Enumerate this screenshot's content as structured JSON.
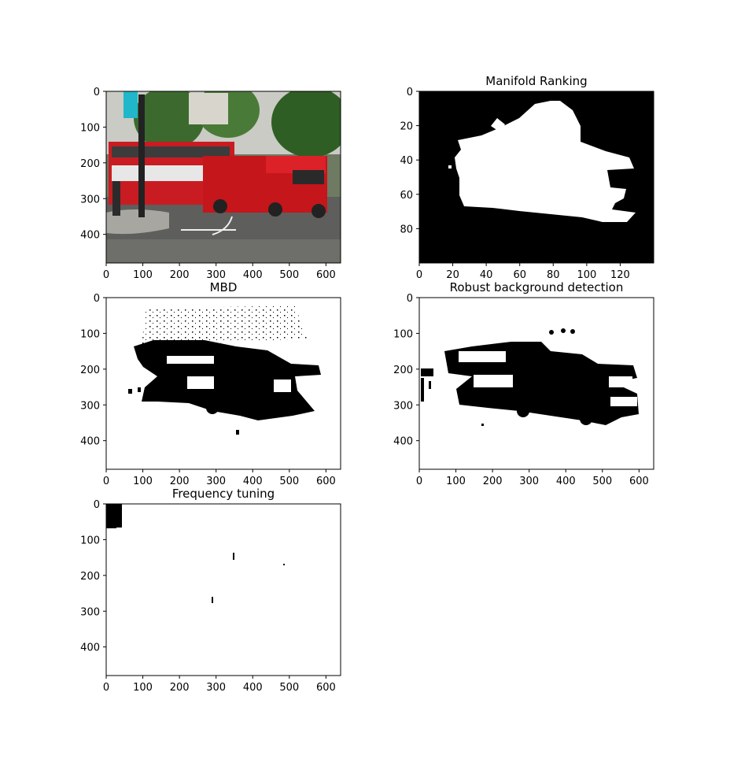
{
  "chart_data": [
    {
      "type": "image",
      "title": "",
      "image": "photo of red double-decker bus and red recovery truck on a street with trees",
      "xlim": [
        0,
        640
      ],
      "ylim": [
        480,
        0
      ],
      "xticks": [
        0,
        100,
        200,
        300,
        400,
        500,
        600
      ],
      "yticks": [
        0,
        100,
        200,
        300,
        400
      ]
    },
    {
      "type": "image",
      "title": "Manifold Ranking",
      "image": "binary saliency mask, white blob on black background",
      "xlim": [
        0,
        140
      ],
      "ylim": [
        100,
        0
      ],
      "xticks": [
        0,
        20,
        40,
        60,
        80,
        100,
        120
      ],
      "yticks": [
        0,
        20,
        40,
        60,
        80
      ]
    },
    {
      "type": "image",
      "title": "MBD",
      "image": "binary mask, black vehicle shapes on white background",
      "xlim": [
        0,
        640
      ],
      "ylim": [
        480,
        0
      ],
      "xticks": [
        0,
        100,
        200,
        300,
        400,
        500,
        600
      ],
      "yticks": [
        0,
        100,
        200,
        300,
        400
      ]
    },
    {
      "type": "image",
      "title": "Robust background detection",
      "image": "binary mask, black bus and truck silhouettes on white background",
      "xlim": [
        0,
        640
      ],
      "ylim": [
        480,
        0
      ],
      "xticks": [
        0,
        100,
        200,
        300,
        400,
        500,
        600
      ],
      "yticks": [
        0,
        100,
        200,
        300,
        400
      ]
    },
    {
      "type": "image",
      "title": "Frequency tuning",
      "image": "almost all white mask with small black block at top-left",
      "xlim": [
        0,
        640
      ],
      "ylim": [
        480,
        0
      ],
      "xticks": [
        0,
        100,
        200,
        300,
        400,
        500,
        600
      ],
      "yticks": [
        0,
        100,
        200,
        300,
        400
      ]
    }
  ]
}
